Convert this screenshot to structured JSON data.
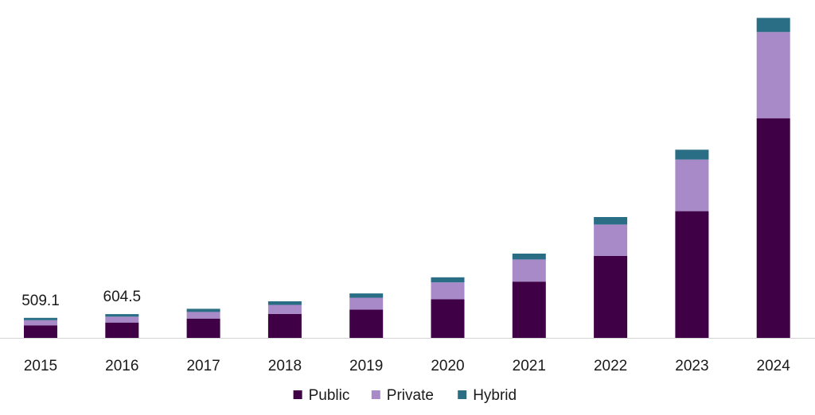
{
  "chart_data": {
    "type": "bar",
    "stacked": true,
    "categories": [
      "2015",
      "2016",
      "2017",
      "2018",
      "2019",
      "2020",
      "2021",
      "2022",
      "2023",
      "2024"
    ],
    "series": [
      {
        "name": "Public",
        "color": "#3f0045",
        "values": [
          320,
          390,
          490,
          610,
          720,
          980,
          1430,
          2080,
          3220,
          5580
        ]
      },
      {
        "name": "Private",
        "color": "#a88ac9",
        "values": [
          129.1,
          149.5,
          170,
          230,
          300,
          430,
          560,
          800,
          1310,
          2190
        ]
      },
      {
        "name": "Hybrid",
        "color": "#2a6e85",
        "values": [
          60,
          65,
          80,
          90,
          110,
          130,
          150,
          190,
          250,
          360
        ]
      }
    ],
    "data_labels": [
      {
        "category": "2015",
        "text": "509.1"
      },
      {
        "category": "2016",
        "text": "604.5"
      }
    ],
    "ylim": [
      0,
      8180
    ],
    "title": "",
    "xlabel": "",
    "ylabel": "",
    "grid": false,
    "legend_position": "bottom-center"
  }
}
